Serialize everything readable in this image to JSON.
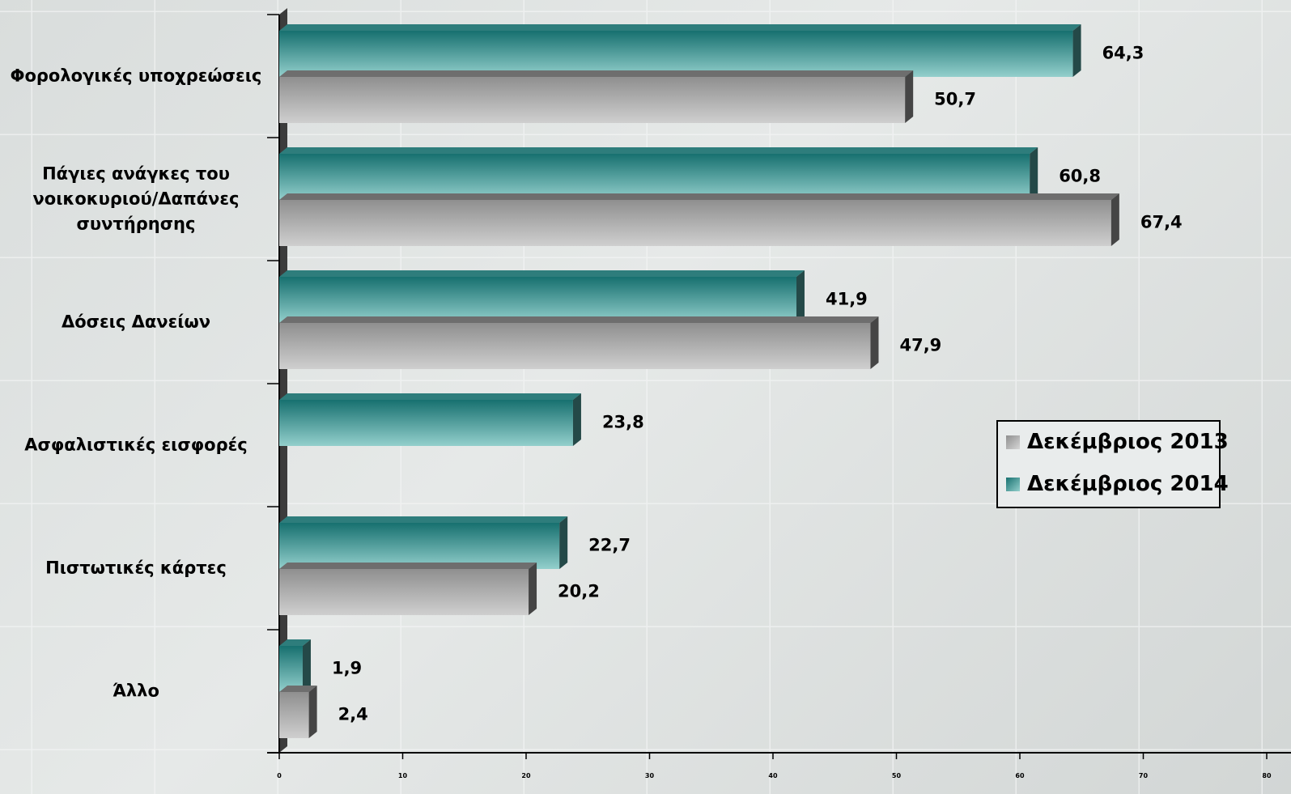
{
  "chart_data": {
    "type": "bar",
    "orientation": "horizontal",
    "categories": [
      "Φορολογικές υποχρεώσεις",
      "Πάγιες ανάγκες του νοικοκυριού/Δαπάνες συντήρησης",
      "Δόσεις Δανείων",
      "Ασφαλιστικές εισφορές",
      "Πιστωτικές κάρτες",
      "Άλλο"
    ],
    "series": [
      {
        "name": "Δεκέμβριος 2013",
        "color": "#a6a6a6",
        "values": [
          50.7,
          67.4,
          47.9,
          null,
          20.2,
          2.4
        ],
        "value_labels": [
          "50,7",
          "67,4",
          "47,9",
          null,
          "20,2",
          "2,4"
        ]
      },
      {
        "name": "Δεκέμβριος 2014",
        "color": "#3a9a9a",
        "values": [
          64.3,
          60.8,
          41.9,
          23.8,
          22.7,
          1.9
        ],
        "value_labels": [
          "64,3",
          "60,8",
          "41,9",
          "23,8",
          "22,7",
          "1,9"
        ]
      }
    ],
    "xlim": [
      0,
      80
    ],
    "xticks": [
      0,
      10,
      20,
      30,
      40,
      50,
      60,
      70,
      80
    ],
    "legend": "right"
  }
}
